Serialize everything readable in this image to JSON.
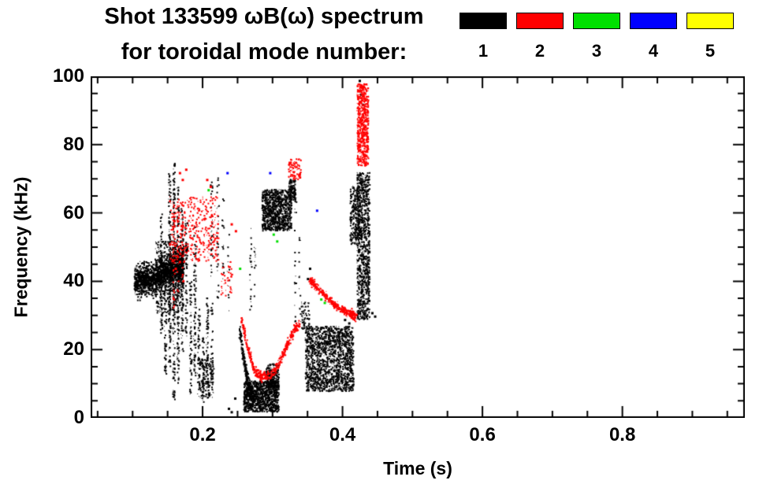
{
  "title": {
    "line1": "Shot 133599 ωB(ω) spectrum",
    "line2": "for toroidal mode number:"
  },
  "legend": {
    "entries": [
      {
        "label": "1",
        "color": "#000000"
      },
      {
        "label": "2",
        "color": "#ff0000"
      },
      {
        "label": "3",
        "color": "#00e000"
      },
      {
        "label": "4",
        "color": "#0000ff"
      },
      {
        "label": "5",
        "color": "#ffff00"
      }
    ]
  },
  "chart_data": {
    "type": "scatter",
    "title": "Shot 133599 ωB(ω) spectrum for toroidal mode number: 1 2 3 4 5",
    "xlabel": "Time (s)",
    "ylabel": "Frequency (kHz)",
    "xlim": [
      0.04,
      0.975
    ],
    "ylim": [
      0,
      100
    ],
    "xticks": [
      0.2,
      0.4,
      0.6,
      0.8
    ],
    "xtick_labels": [
      "0.2",
      "0.4",
      "0.6",
      "0.8"
    ],
    "yticks": [
      0,
      20,
      40,
      60,
      80,
      100
    ],
    "ytick_labels": [
      "0",
      "20",
      "40",
      "60",
      "80",
      "100"
    ],
    "x_minor_step": 0.05,
    "y_minor_step": 5,
    "grid": false,
    "legend_position": "top-right",
    "series": [
      {
        "name": "n=1",
        "color": "#000000",
        "clusters": [
          {
            "type": "band",
            "path": [
              [
                0.102,
                40
              ],
              [
                0.125,
                41
              ],
              [
                0.148,
                43
              ],
              [
                0.172,
                45
              ]
            ],
            "spread": 4.5,
            "n": 1700
          },
          {
            "type": "blob",
            "t": [
              0.132,
              0.172
            ],
            "f": [
              31,
              52
            ],
            "n": 450
          },
          {
            "type": "vstreaks",
            "jitter": 0.0015,
            "streaks": [
              [
                0.14,
                25,
                60,
                80
              ],
              [
                0.146,
                12,
                50,
                70
              ],
              [
                0.152,
                15,
                72,
                130
              ],
              [
                0.158,
                5,
                75,
                170
              ],
              [
                0.164,
                10,
                68,
                120
              ],
              [
                0.17,
                18,
                62,
                90
              ],
              [
                0.176,
                24,
                58,
                75
              ],
              [
                0.182,
                6,
                42,
                60
              ],
              [
                0.188,
                12,
                56,
                80
              ],
              [
                0.194,
                8,
                32,
                45
              ],
              [
                0.2,
                4,
                24,
                35
              ],
              [
                0.206,
                9,
                36,
                50
              ],
              [
                0.212,
                5,
                70,
                55
              ],
              [
                0.221,
                35,
                72,
                30
              ],
              [
                0.228,
                40,
                65,
                18
              ],
              [
                0.236,
                30,
                55,
                12
              ],
              [
                0.268,
                30,
                57,
                20
              ],
              [
                0.274,
                35,
                52,
                12
              ],
              [
                0.332,
                25,
                65,
                22
              ],
              [
                0.338,
                30,
                55,
                12
              ]
            ]
          },
          {
            "type": "blob",
            "t": [
              0.192,
              0.215
            ],
            "f": [
              6,
              18
            ],
            "n": 180
          },
          {
            "type": "blob",
            "t": [
              0.284,
              0.326
            ],
            "f": [
              55,
              67
            ],
            "n": 950
          },
          {
            "type": "blob",
            "t": [
              0.322,
              0.332
            ],
            "f": [
              64,
              70
            ],
            "n": 120
          },
          {
            "type": "band",
            "path": [
              [
                0.252,
                26
              ],
              [
                0.258,
                17
              ],
              [
                0.264,
                10
              ],
              [
                0.272,
                6
              ]
            ],
            "spread": 2.2,
            "n": 250
          },
          {
            "type": "blob",
            "t": [
              0.258,
              0.308
            ],
            "f": [
              2,
              11
            ],
            "n": 1050
          },
          {
            "type": "blob",
            "t": [
              0.29,
              0.308
            ],
            "f": [
              9,
              16
            ],
            "n": 200
          },
          {
            "type": "blob",
            "t": [
              0.34,
              0.352
            ],
            "f": [
              26,
              34
            ],
            "n": 60
          },
          {
            "type": "blob",
            "t": [
              0.346,
              0.415
            ],
            "f": [
              8,
              27
            ],
            "n": 1600
          },
          {
            "type": "blob",
            "t": [
              0.41,
              0.424
            ],
            "f": [
              51,
              68
            ],
            "n": 260
          },
          {
            "type": "blob",
            "t": [
              0.42,
              0.438
            ],
            "f": [
              29,
              72
            ],
            "n": 950
          },
          {
            "type": "dots",
            "points": [
              [
                0.425,
                95
              ],
              [
                0.427,
                97
              ],
              [
                0.428,
                92
              ],
              [
                0.423,
                99
              ],
              [
                0.441,
                31
              ],
              [
                0.445,
                30
              ],
              [
                0.352,
                44
              ],
              [
                0.349,
                41
              ],
              [
                0.402,
                29
              ],
              [
                0.408,
                28
              ],
              [
                0.24,
                2
              ],
              [
                0.245,
                6
              ],
              [
                0.236,
                3
              ]
            ]
          }
        ]
      },
      {
        "name": "n=2",
        "color": "#ff0000",
        "clusters": [
          {
            "type": "blob",
            "t": [
              0.152,
              0.222
            ],
            "f": [
              46,
              65
            ],
            "n": 380
          },
          {
            "type": "vstreaks",
            "jitter": 0.0015,
            "streaks": [
              [
                0.158,
                32,
                60,
                40
              ],
              [
                0.164,
                36,
                62,
                30
              ],
              [
                0.171,
                40,
                64,
                25
              ]
            ]
          },
          {
            "type": "dots",
            "points": [
              [
                0.166,
                72
              ],
              [
                0.17,
                70
              ],
              [
                0.175,
                73
              ],
              [
                0.205,
                70
              ],
              [
                0.21,
                68
              ]
            ]
          },
          {
            "type": "blob",
            "t": [
              0.225,
              0.242
            ],
            "f": [
              36,
              46
            ],
            "n": 45
          },
          {
            "type": "band",
            "path": [
              [
                0.255,
                29
              ],
              [
                0.263,
                21
              ],
              [
                0.272,
                14.5
              ],
              [
                0.283,
                12.3
              ],
              [
                0.296,
                12.6
              ],
              [
                0.308,
                16
              ],
              [
                0.319,
                21
              ],
              [
                0.33,
                26
              ],
              [
                0.338,
                27.5
              ]
            ],
            "spread": 1.3,
            "n": 480
          },
          {
            "type": "band",
            "path": [
              [
                0.352,
                40.5
              ],
              [
                0.366,
                37.5
              ],
              [
                0.381,
                34.5
              ],
              [
                0.396,
                32
              ],
              [
                0.41,
                30.5
              ],
              [
                0.419,
                30
              ]
            ],
            "spread": 1.3,
            "n": 380
          },
          {
            "type": "blob",
            "t": [
              0.322,
              0.34
            ],
            "f": [
              70,
              76
            ],
            "n": 90
          },
          {
            "type": "blob",
            "t": [
              0.42,
              0.436
            ],
            "f": [
              74,
              98
            ],
            "n": 650
          },
          {
            "type": "dots",
            "points": [
              [
                0.16,
                44
              ],
              [
                0.166,
                46
              ],
              [
                0.24,
                57
              ],
              [
                0.246,
                55
              ]
            ]
          }
        ]
      },
      {
        "name": "n=3",
        "color": "#00e000",
        "clusters": [
          {
            "type": "dots",
            "points": [
              [
                0.207,
                67
              ],
              [
                0.3,
                54
              ],
              [
                0.305,
                52
              ],
              [
                0.368,
                35
              ],
              [
                0.373,
                34
              ],
              [
                0.252,
                44
              ]
            ]
          }
        ]
      },
      {
        "name": "n=4",
        "color": "#0000ff",
        "clusters": [
          {
            "type": "dots",
            "points": [
              [
                0.234,
                72
              ],
              [
                0.295,
                72
              ],
              [
                0.362,
                61
              ]
            ]
          }
        ]
      },
      {
        "name": "n=5",
        "color": "#ffff00",
        "clusters": []
      }
    ]
  }
}
